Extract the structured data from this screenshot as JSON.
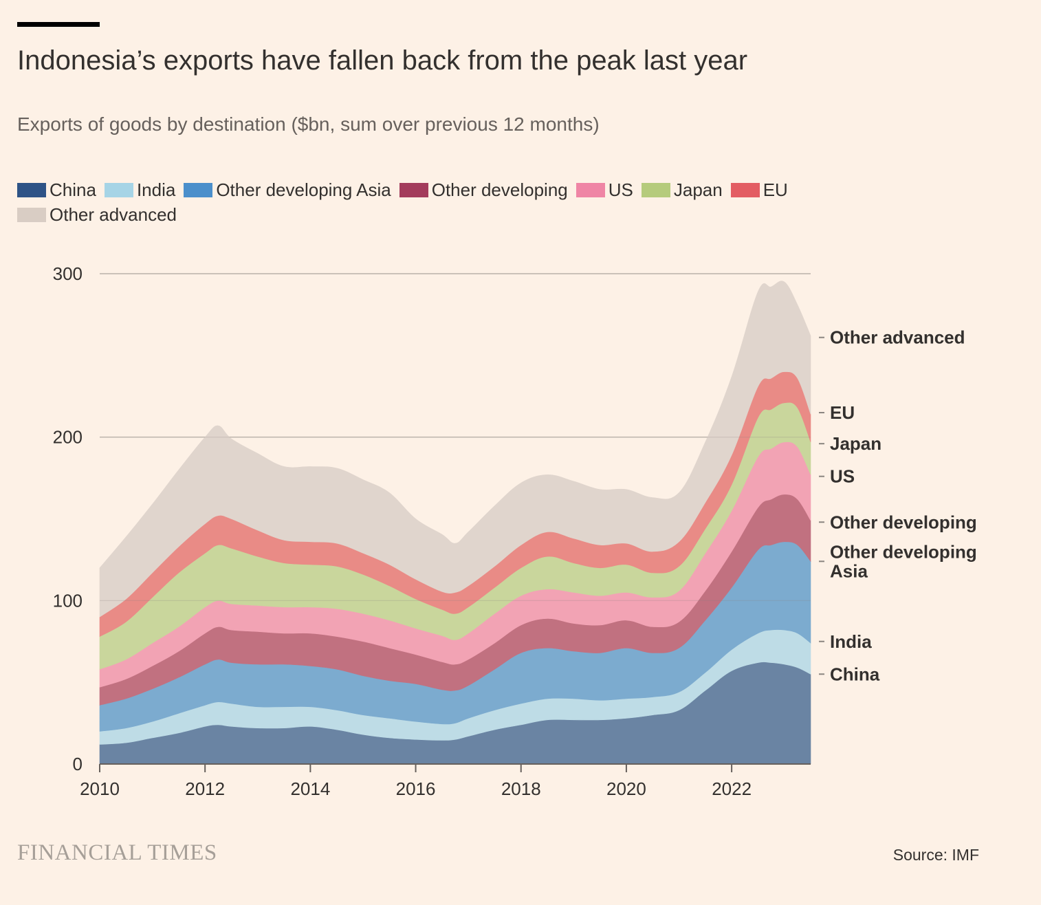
{
  "header": {
    "title": "Indonesia’s exports have fallen back from the peak last year",
    "subtitle": "Exports of goods by destination ($bn, sum over previous 12 months)"
  },
  "footer": {
    "brand": "FINANCIAL TIMES",
    "source": "Source: IMF"
  },
  "chart_data": {
    "type": "area",
    "stacked": true,
    "title": "Indonesia’s exports have fallen back from the peak last year",
    "subtitle": "Exports of goods by destination ($bn, sum over previous 12 months)",
    "xlabel": "",
    "ylabel": "",
    "xlim": [
      2010,
      2023.5
    ],
    "ylim": [
      0,
      300
    ],
    "x_ticks": [
      2010,
      2012,
      2014,
      2016,
      2018,
      2020,
      2022
    ],
    "y_ticks": [
      0,
      100,
      200,
      300
    ],
    "grid": "horizontal",
    "legend_position": "top",
    "x": [
      2010,
      2010.5,
      2011,
      2011.5,
      2012,
      2012.25,
      2012.5,
      2013,
      2013.5,
      2014,
      2014.5,
      2015,
      2015.5,
      2016,
      2016.5,
      2016.75,
      2017,
      2017.5,
      2018,
      2018.5,
      2019,
      2019.5,
      2020,
      2020.5,
      2021,
      2021.5,
      2022,
      2022.5,
      2022.75,
      2023,
      2023.25,
      2023.5
    ],
    "series": [
      {
        "name": "China",
        "color": "#6a84a3",
        "values": [
          12,
          13,
          16,
          19,
          23,
          24,
          23,
          22,
          22,
          23,
          21,
          18,
          16,
          15,
          14.5,
          15,
          17,
          21,
          24,
          27,
          27,
          27,
          28,
          30,
          33,
          45,
          57,
          62,
          62,
          61,
          59,
          55
        ]
      },
      {
        "name": "India",
        "color": "#bedce6",
        "values": [
          8,
          9,
          10,
          12,
          13,
          14,
          14,
          13,
          13,
          12,
          12,
          12,
          12,
          11,
          10,
          10,
          11,
          12,
          13,
          13,
          13,
          12,
          12,
          11,
          11,
          11,
          13,
          18,
          20,
          21,
          21,
          19
        ]
      },
      {
        "name": "Other developing Asia",
        "color": "#7cabcf",
        "values": [
          16,
          18,
          20,
          22,
          25,
          26,
          25,
          26,
          26,
          25,
          25,
          24,
          23,
          23,
          21,
          20,
          20,
          25,
          31,
          31,
          29,
          29,
          31,
          27,
          27,
          32,
          38,
          51,
          52,
          54,
          54,
          50
        ]
      },
      {
        "name": "Other developing",
        "color": "#c17180",
        "values": [
          11,
          12,
          14,
          16,
          19,
          20,
          20,
          20,
          19,
          20,
          20,
          21,
          20,
          18,
          17,
          16,
          16,
          16,
          17,
          18,
          17,
          17,
          17,
          16,
          16,
          18,
          22,
          26,
          28,
          29,
          28,
          25
        ]
      },
      {
        "name": "US",
        "color": "#f2a3b4",
        "values": [
          11,
          12,
          14,
          15,
          16,
          16,
          16,
          16,
          16,
          16,
          17,
          17,
          17,
          16,
          16,
          15,
          16,
          18,
          18,
          18,
          19,
          18,
          17,
          18,
          19,
          23,
          25,
          31,
          31,
          32,
          32,
          28
        ]
      },
      {
        "name": "Japan",
        "color": "#c9d69c",
        "values": [
          20,
          23,
          28,
          33,
          33,
          34,
          34,
          30,
          27,
          26,
          26,
          24,
          21,
          18,
          16,
          16,
          16,
          16,
          17,
          20,
          18,
          17,
          17,
          15,
          15,
          15,
          16,
          24,
          24,
          24,
          24,
          20
        ]
      },
      {
        "name": "EU",
        "color": "#e98b86",
        "values": [
          12,
          14,
          15,
          16,
          18,
          18,
          18,
          16,
          14,
          14,
          14,
          13,
          13,
          12,
          11,
          13,
          13,
          13,
          14,
          15,
          15,
          14,
          13,
          13,
          15,
          16,
          18,
          19,
          19,
          19,
          18,
          17
        ]
      },
      {
        "name": "Other advanced",
        "color": "#e0d5cd",
        "values": [
          30,
          38,
          42,
          47,
          53,
          55,
          49,
          47,
          45,
          46,
          46,
          45,
          44,
          37,
          35,
          30,
          33,
          37,
          38,
          35,
          35,
          34,
          33,
          33,
          30,
          37,
          48,
          58,
          56,
          55,
          45,
          48
        ]
      }
    ],
    "end_labels": [
      {
        "text": "Other advanced",
        "y": 261
      },
      {
        "text": "EU",
        "y": 215
      },
      {
        "text": "Japan",
        "y": 196
      },
      {
        "text": "US",
        "y": 176
      },
      {
        "text": "Other developing",
        "y": 148
      },
      {
        "text": "Other developing Asia",
        "lines": [
          "Other developing",
          "Asia"
        ],
        "y": 124
      },
      {
        "text": "India",
        "y": 75
      },
      {
        "text": "China",
        "y": 55
      }
    ]
  }
}
